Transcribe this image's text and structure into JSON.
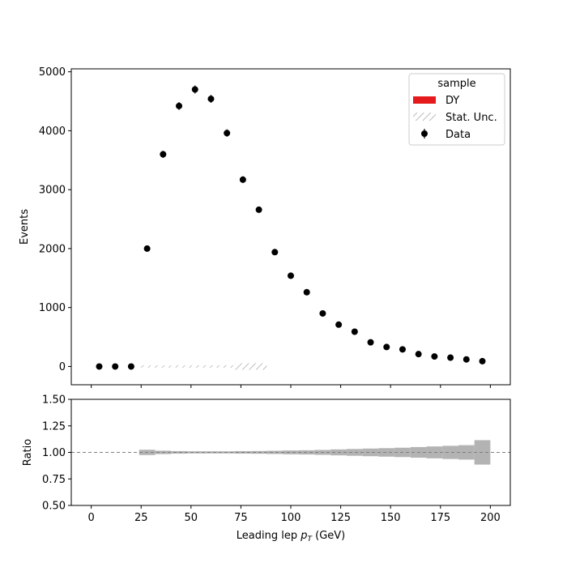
{
  "chart_data": [
    {
      "type": "scatter",
      "panel": "main",
      "xlabel_prefix": "Leading lep ",
      "xlabel_var": "p",
      "xlabel_sub": "T",
      "xlabel_suffix": " (GeV)",
      "ylabel": "Events",
      "xlim": [
        -10,
        210
      ],
      "ylim": [
        -310,
        5050
      ],
      "xticks": [
        0,
        25,
        50,
        75,
        100,
        125,
        150,
        175,
        200
      ],
      "yticks": [
        0,
        1000,
        2000,
        3000,
        4000,
        5000
      ],
      "legend": {
        "title": "sample",
        "position": "top-right",
        "entries": [
          {
            "label": "DY",
            "kind": "patch",
            "color": "#e41a1c"
          },
          {
            "label": "Stat. Unc.",
            "kind": "hatch",
            "color": "#888888"
          },
          {
            "label": "Data",
            "kind": "errorbar",
            "color": "#000000"
          }
        ]
      },
      "series": [
        {
          "name": "Data",
          "color": "#000000",
          "x": [
            4,
            12,
            20,
            28,
            36,
            44,
            52,
            60,
            68,
            76,
            84,
            92,
            100,
            108,
            116,
            124,
            132,
            140,
            148,
            156,
            164,
            172,
            180,
            188,
            196
          ],
          "values": [
            0,
            0,
            0,
            2000,
            3600,
            4420,
            4700,
            4540,
            3960,
            3170,
            2660,
            1940,
            1540,
            1260,
            900,
            710,
            590,
            410,
            330,
            290,
            210,
            170,
            150,
            120,
            90
          ]
        }
      ],
      "stat_unc_band": {
        "x_edges": [
          24,
          32,
          40,
          48,
          56,
          64,
          72,
          80,
          88
        ],
        "y_center": 0
      }
    },
    {
      "type": "area",
      "panel": "ratio",
      "ylabel": "Ratio",
      "xlim": [
        -10,
        210
      ],
      "ylim": [
        0.5,
        1.5
      ],
      "xticks": [
        0,
        25,
        50,
        75,
        100,
        125,
        150,
        175,
        200
      ],
      "yticks": [
        0.5,
        0.75,
        1.0,
        1.25,
        1.5
      ],
      "ytick_labels": [
        "0.50",
        "0.75",
        "1.00",
        "1.25",
        "1.50"
      ],
      "reference_line": 1.0,
      "band": {
        "x_edges": [
          24,
          32,
          40,
          48,
          56,
          64,
          72,
          80,
          88,
          96,
          104,
          112,
          120,
          128,
          136,
          144,
          152,
          160,
          168,
          176,
          184,
          192,
          200
        ],
        "half_width": [
          0.025,
          0.016,
          0.012,
          0.01,
          0.01,
          0.01,
          0.012,
          0.013,
          0.015,
          0.018,
          0.02,
          0.023,
          0.028,
          0.032,
          0.036,
          0.04,
          0.044,
          0.05,
          0.056,
          0.062,
          0.068,
          0.115
        ]
      }
    }
  ],
  "colors": {
    "band": "#b3b3b3",
    "refline": "#808080",
    "hatch": "#888888"
  }
}
